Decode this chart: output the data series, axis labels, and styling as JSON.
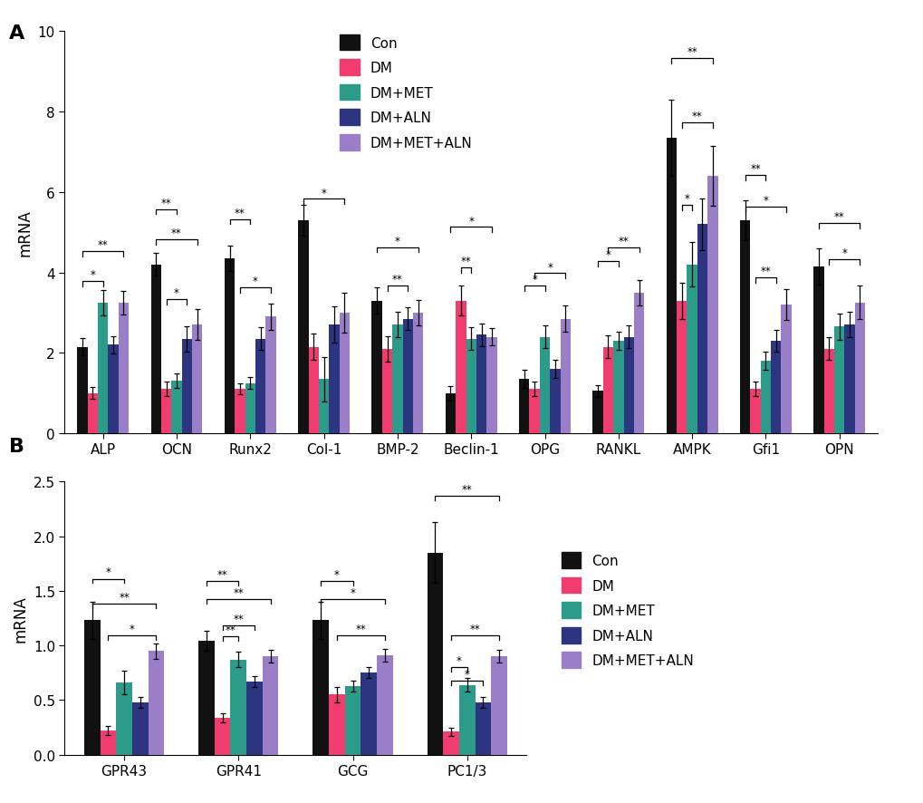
{
  "panel_A": {
    "categories": [
      "ALP",
      "OCN",
      "Runx2",
      "Col-1",
      "BMP-2",
      "Beclin-1",
      "OPG",
      "RANKL",
      "AMPK",
      "Gfi1",
      "OPN"
    ],
    "groups": [
      "Con",
      "DM",
      "DM+MET",
      "DM+ALN",
      "DM+MET+ALN"
    ],
    "colors": [
      "#111111",
      "#f03c6e",
      "#2d9b8a",
      "#2d3580",
      "#9b7ec8"
    ],
    "values": [
      [
        2.15,
        1.0,
        3.25,
        2.2,
        3.25
      ],
      [
        4.2,
        1.1,
        1.3,
        2.35,
        2.7
      ],
      [
        4.35,
        1.1,
        1.25,
        2.35,
        2.9
      ],
      [
        5.3,
        2.15,
        1.35,
        2.7,
        3.0
      ],
      [
        3.3,
        2.1,
        2.7,
        2.85,
        3.0
      ],
      [
        1.0,
        3.3,
        2.35,
        2.45,
        2.4
      ],
      [
        1.35,
        1.1,
        2.4,
        1.6,
        2.85
      ],
      [
        1.05,
        2.15,
        2.3,
        2.4,
        3.5
      ],
      [
        7.35,
        3.3,
        4.2,
        5.2,
        6.4
      ],
      [
        5.3,
        1.1,
        1.8,
        2.3,
        3.2
      ],
      [
        4.15,
        2.1,
        2.65,
        2.7,
        3.25
      ]
    ],
    "errors": [
      [
        0.22,
        0.14,
        0.32,
        0.22,
        0.3
      ],
      [
        0.28,
        0.18,
        0.18,
        0.32,
        0.38
      ],
      [
        0.32,
        0.14,
        0.14,
        0.28,
        0.32
      ],
      [
        0.38,
        0.32,
        0.55,
        0.45,
        0.5
      ],
      [
        0.32,
        0.32,
        0.32,
        0.28,
        0.32
      ],
      [
        0.18,
        0.38,
        0.28,
        0.28,
        0.22
      ],
      [
        0.22,
        0.18,
        0.28,
        0.22,
        0.32
      ],
      [
        0.14,
        0.28,
        0.22,
        0.28,
        0.32
      ],
      [
        0.95,
        0.45,
        0.55,
        0.65,
        0.75
      ],
      [
        0.5,
        0.18,
        0.22,
        0.28,
        0.38
      ],
      [
        0.45,
        0.28,
        0.32,
        0.32,
        0.42
      ]
    ],
    "ylabel": "mRNA",
    "ylim": [
      0,
      10
    ],
    "yticks": [
      0,
      2,
      4,
      6,
      8,
      10
    ],
    "panel_label": "A"
  },
  "panel_B": {
    "categories": [
      "GPR43",
      "GPR41",
      "GCG",
      "PC1/3"
    ],
    "groups": [
      "Con",
      "DM",
      "DM+MET",
      "DM+ALN",
      "DM+MET+ALN"
    ],
    "colors": [
      "#111111",
      "#f03c6e",
      "#2d9b8a",
      "#2d3580",
      "#9b7ec8"
    ],
    "values": [
      [
        1.23,
        0.22,
        0.66,
        0.48,
        0.95
      ],
      [
        1.04,
        0.34,
        0.87,
        0.67,
        0.9
      ],
      [
        1.23,
        0.55,
        0.63,
        0.75,
        0.91
      ],
      [
        1.85,
        0.21,
        0.64,
        0.48,
        0.9
      ]
    ],
    "errors": [
      [
        0.17,
        0.04,
        0.11,
        0.05,
        0.07
      ],
      [
        0.09,
        0.04,
        0.07,
        0.05,
        0.06
      ],
      [
        0.17,
        0.07,
        0.05,
        0.05,
        0.06
      ],
      [
        0.28,
        0.04,
        0.06,
        0.05,
        0.06
      ]
    ],
    "ylabel": "mRNA",
    "ylim": [
      0,
      2.5
    ],
    "yticks": [
      0.0,
      0.5,
      1.0,
      1.5,
      2.0,
      2.5
    ],
    "panel_label": "B"
  },
  "legend_labels": [
    "Con",
    "DM",
    "DM+MET",
    "DM+ALN",
    "DM+MET+ALN"
  ],
  "colors": [
    "#111111",
    "#f03c6e",
    "#2d9b8a",
    "#2d3580",
    "#9b7ec8"
  ],
  "bar_width": 0.14,
  "figsize": [
    10.2,
    8.87
  ],
  "dpi": 100
}
